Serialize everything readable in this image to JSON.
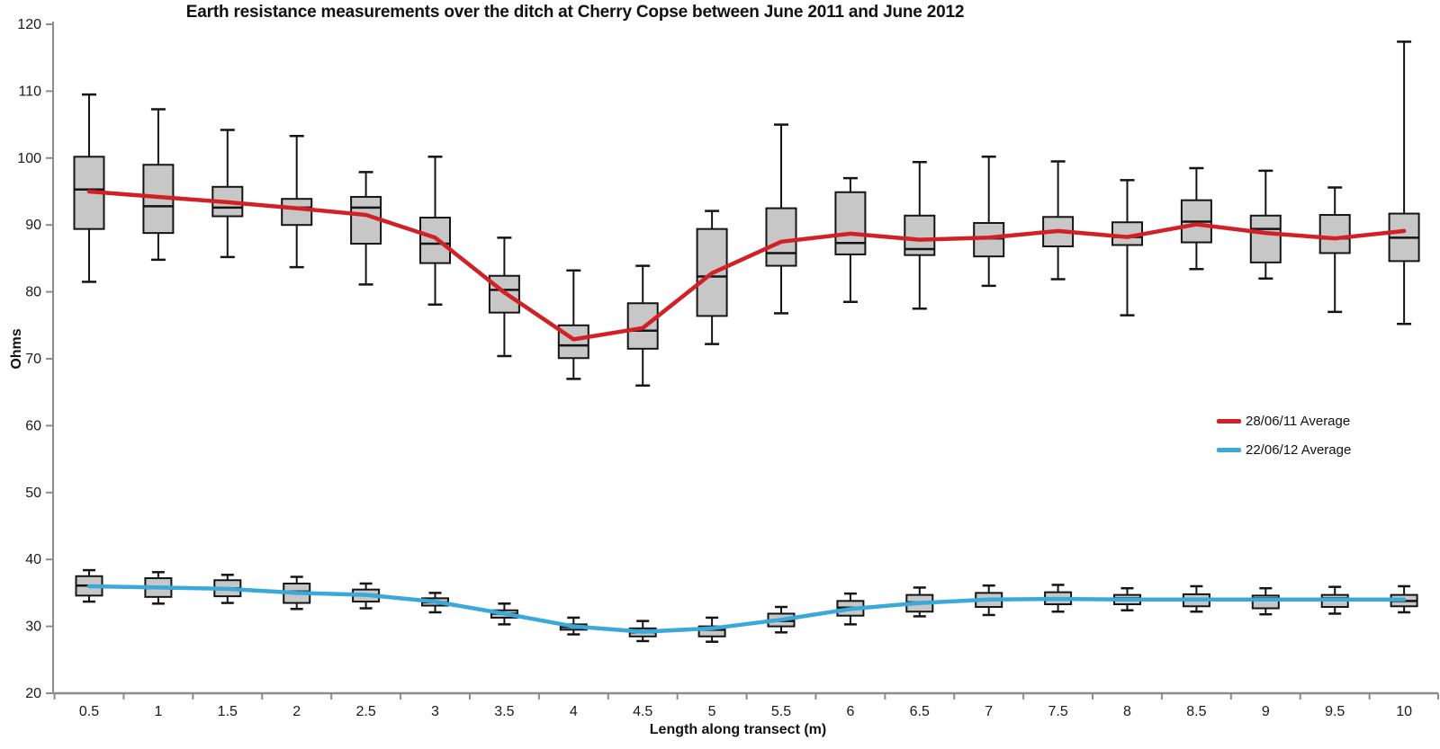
{
  "page": {
    "background": "#ffffff"
  },
  "chart_data": {
    "type": "box",
    "title": "Earth resistance measurements over the ditch at Cherry Copse between June 2011 and June 2012",
    "xlabel": "Length along transect (m)",
    "ylabel": "Ohms",
    "ylim": [
      20,
      120
    ],
    "ytick_step": 10,
    "yticks": [
      20,
      30,
      40,
      50,
      60,
      70,
      80,
      90,
      100,
      110,
      120
    ],
    "categories": [
      "0.5",
      "1",
      "1.5",
      "2",
      "2.5",
      "3",
      "3.5",
      "4",
      "4.5",
      "5",
      "5.5",
      "6",
      "6.5",
      "7",
      "7.5",
      "8",
      "8.5",
      "9",
      "9.5",
      "10"
    ],
    "grid": false,
    "legend_position": "middle-right",
    "box_fill": "#c7c7c7",
    "box_stroke": "#141414",
    "axis_color": "#8c8c8c",
    "tick_label_color": "#1a1a1a",
    "series": [
      {
        "name": "28/06/11 Average",
        "color": "#d22027",
        "box_stat_order": [
          "min",
          "q1",
          "median",
          "q3",
          "max"
        ],
        "boxes": [
          [
            81.5,
            89.4,
            95.3,
            100.2,
            109.5
          ],
          [
            84.8,
            88.8,
            92.8,
            99.0,
            107.3
          ],
          [
            85.2,
            91.3,
            92.6,
            95.7,
            104.2
          ],
          [
            83.7,
            90.0,
            92.6,
            93.9,
            103.3
          ],
          [
            81.1,
            87.2,
            92.6,
            94.2,
            97.9
          ],
          [
            78.1,
            84.3,
            87.2,
            91.1,
            100.2
          ],
          [
            70.4,
            76.9,
            80.3,
            82.4,
            88.1
          ],
          [
            67.0,
            70.1,
            72.0,
            75.0,
            83.2
          ],
          [
            66.0,
            71.5,
            74.2,
            78.3,
            83.9
          ],
          [
            72.2,
            76.4,
            82.3,
            89.4,
            92.1
          ],
          [
            76.8,
            83.9,
            85.8,
            92.5,
            105.0
          ],
          [
            78.5,
            85.6,
            87.3,
            94.9,
            97.0
          ],
          [
            77.5,
            85.5,
            86.4,
            91.4,
            99.4
          ],
          [
            80.9,
            85.3,
            88.0,
            90.3,
            100.2
          ],
          [
            81.9,
            86.8,
            89.0,
            91.2,
            99.5
          ],
          [
            76.5,
            87.0,
            88.2,
            90.4,
            96.7
          ],
          [
            83.4,
            87.4,
            90.5,
            93.7,
            98.5
          ],
          [
            82.0,
            84.4,
            89.4,
            91.4,
            98.1
          ],
          [
            77.0,
            85.8,
            88.0,
            91.5,
            95.6
          ],
          [
            75.2,
            84.6,
            88.1,
            91.7,
            117.4
          ]
        ],
        "averages": [
          95.0,
          94.2,
          93.4,
          92.5,
          91.5,
          88.1,
          79.9,
          72.9,
          74.6,
          82.8,
          87.5,
          88.7,
          87.8,
          88.1,
          89.1,
          88.2,
          90.1,
          88.8,
          88.0,
          89.1
        ]
      },
      {
        "name": "22/06/12 Average",
        "color": "#3aa8d8",
        "box_stat_order": [
          "min",
          "q1",
          "median",
          "q3",
          "max"
        ],
        "boxes": [
          [
            33.7,
            34.6,
            36.1,
            37.5,
            38.4
          ],
          [
            33.4,
            34.4,
            35.7,
            37.2,
            38.1
          ],
          [
            33.5,
            34.5,
            35.7,
            36.9,
            37.7
          ],
          [
            32.6,
            33.5,
            35.2,
            36.4,
            37.4
          ],
          [
            32.7,
            33.7,
            34.7,
            35.5,
            36.4
          ],
          [
            32.1,
            33.1,
            33.6,
            34.2,
            35.0
          ],
          [
            30.3,
            31.3,
            31.9,
            32.4,
            33.4
          ],
          [
            28.8,
            29.5,
            29.9,
            30.3,
            31.3
          ],
          [
            27.8,
            28.5,
            29.1,
            29.7,
            30.8
          ],
          [
            27.7,
            28.5,
            29.5,
            30.0,
            31.3
          ],
          [
            29.1,
            30.0,
            30.8,
            31.9,
            32.9
          ],
          [
            30.3,
            31.6,
            32.8,
            33.8,
            34.9
          ],
          [
            31.5,
            32.2,
            33.6,
            34.7,
            35.8
          ],
          [
            31.7,
            32.9,
            34.0,
            35.0,
            36.1
          ],
          [
            32.2,
            33.3,
            34.1,
            35.1,
            36.2
          ],
          [
            32.4,
            33.3,
            34.2,
            34.7,
            35.7
          ],
          [
            32.2,
            33.0,
            34.0,
            34.8,
            36.0
          ],
          [
            31.8,
            32.7,
            34.2,
            34.6,
            35.7
          ],
          [
            31.9,
            32.9,
            34.2,
            34.7,
            35.9
          ],
          [
            32.1,
            33.0,
            33.8,
            34.7,
            36.0
          ]
        ],
        "averages": [
          36.0,
          35.8,
          35.6,
          35.0,
          34.7,
          33.7,
          31.9,
          30.0,
          29.2,
          29.7,
          31.0,
          32.6,
          33.5,
          34.0,
          34.1,
          34.0,
          34.0,
          34.0,
          34.0,
          34.0
        ]
      }
    ]
  }
}
